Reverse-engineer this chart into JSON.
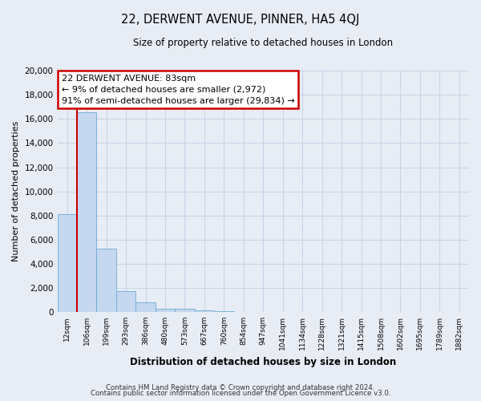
{
  "title": "22, DERWENT AVENUE, PINNER, HA5 4QJ",
  "subtitle": "Size of property relative to detached houses in London",
  "xlabel": "Distribution of detached houses by size in London",
  "ylabel": "Number of detached properties",
  "bar_labels": [
    "12sqm",
    "106sqm",
    "199sqm",
    "293sqm",
    "386sqm",
    "480sqm",
    "573sqm",
    "667sqm",
    "760sqm",
    "854sqm",
    "947sqm",
    "1041sqm",
    "1134sqm",
    "1228sqm",
    "1321sqm",
    "1415sqm",
    "1508sqm",
    "1602sqm",
    "1695sqm",
    "1789sqm",
    "1882sqm"
  ],
  "bar_values": [
    8100,
    16550,
    5250,
    1750,
    780,
    310,
    270,
    150,
    110,
    0,
    0,
    0,
    0,
    0,
    0,
    0,
    0,
    0,
    0,
    0,
    0
  ],
  "bar_color": "#c5d8f0",
  "bar_edge_color": "#6aaad4",
  "ylim": [
    0,
    20000
  ],
  "yticks": [
    0,
    2000,
    4000,
    6000,
    8000,
    10000,
    12000,
    14000,
    16000,
    18000,
    20000
  ],
  "annotation_title": "22 DERWENT AVENUE: 83sqm",
  "annotation_line1": "← 9% of detached houses are smaller (2,972)",
  "annotation_line2": "91% of semi-detached houses are larger (29,834) →",
  "annotation_box_color": "#ffffff",
  "annotation_box_edge": "#cc0000",
  "red_line_color": "#cc0000",
  "grid_color": "#c8d4e8",
  "bg_color": "#e8edf5",
  "footer1": "Contains HM Land Registry data © Crown copyright and database right 2024.",
  "footer2": "Contains public sector information licensed under the Open Government Licence v3.0."
}
